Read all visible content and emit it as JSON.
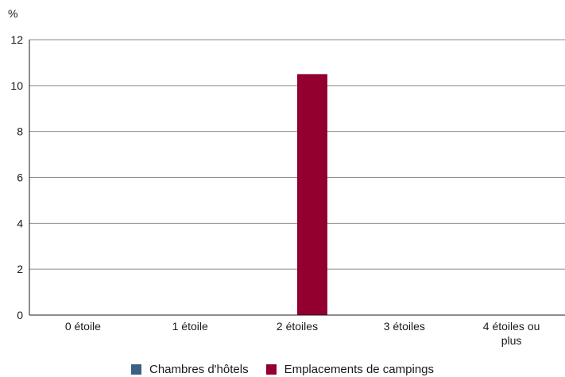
{
  "chart_data": {
    "type": "bar",
    "ylabel": "%",
    "ylim": [
      0,
      12
    ],
    "yticks": [
      0,
      2,
      4,
      6,
      8,
      10,
      12
    ],
    "categories": [
      "0 étoile",
      "1 étoile",
      "2 étoiles",
      "3 étoiles",
      "4 étoiles ou plus"
    ],
    "series": [
      {
        "name": "Chambres d'hôtels",
        "color": "#3b6182",
        "values": [
          0,
          0,
          0,
          0,
          0
        ]
      },
      {
        "name": "Emplacements de campings",
        "color": "#930030",
        "values": [
          0,
          0,
          10.5,
          0,
          0
        ]
      }
    ],
    "grid": true,
    "legend_position": "bottom"
  }
}
